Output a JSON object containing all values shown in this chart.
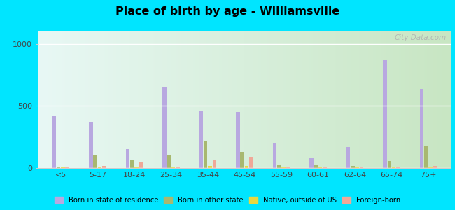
{
  "title": "Place of birth by age - Williamsville",
  "categories": [
    "<5",
    "5-17",
    "18-24",
    "25-34",
    "35-44",
    "45-54",
    "55-59",
    "60-61",
    "62-64",
    "65-74",
    "75+"
  ],
  "series": {
    "Born in state of residence": [
      420,
      370,
      155,
      650,
      455,
      450,
      205,
      85,
      170,
      870,
      635
    ],
    "Born in other state": [
      12,
      110,
      60,
      110,
      215,
      130,
      30,
      30,
      18,
      55,
      175
    ],
    "Native, outside of US": [
      5,
      10,
      10,
      12,
      15,
      15,
      8,
      10,
      8,
      12,
      12
    ],
    "Foreign-born": [
      8,
      18,
      45,
      12,
      65,
      90,
      12,
      12,
      10,
      12,
      15
    ]
  },
  "colors": {
    "Born in state of residence": "#b8a8e0",
    "Born in other state": "#a8b870",
    "Native, outside of US": "#e8d840",
    "Foreign-born": "#f0a898"
  },
  "bar_width": 0.12,
  "ylim": [
    0,
    1100
  ],
  "yticks": [
    0,
    500,
    1000
  ],
  "background_top": "#e8f8f8",
  "background_bottom": "#c8e8c0",
  "fig_background": "#00e5ff",
  "watermark": "City-Data.com"
}
